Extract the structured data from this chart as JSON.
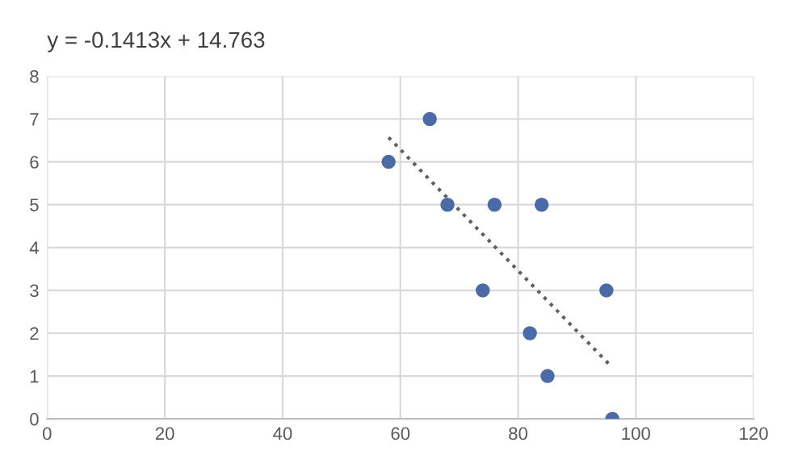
{
  "chart_data": {
    "type": "scatter",
    "annotations": [
      "y = -0.1413x + 14.763"
    ],
    "series": [
      {
        "color": "#4a6aa8",
        "marker": "circle",
        "x": [
          58,
          65,
          68,
          76,
          84,
          74,
          95,
          82,
          85,
          96
        ],
        "values": [
          6,
          7,
          5,
          5,
          5,
          3,
          3,
          2,
          1,
          0
        ]
      },
      {
        "type": "line",
        "color": "#606060",
        "line_style": "dotted",
        "marker": "none",
        "x": [
          58,
          96
        ],
        "values": [
          6.57,
          1.2
        ]
      }
    ],
    "xlim": [
      0,
      120
    ],
    "xticks": [
      0,
      20,
      40,
      60,
      80,
      100,
      120
    ],
    "ylim": [
      0,
      8
    ],
    "yticks": [
      0,
      1,
      2,
      3,
      4,
      5,
      6,
      7,
      8
    ],
    "grid": true,
    "legend": false
  }
}
